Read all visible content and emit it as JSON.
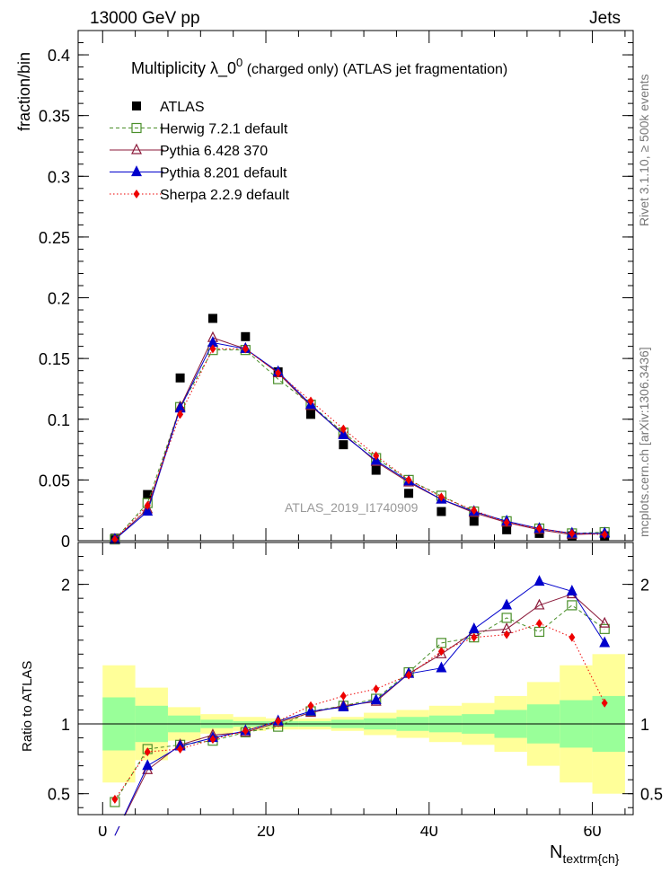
{
  "header": {
    "left": "13000 GeV pp",
    "right": "Jets"
  },
  "side_labels": {
    "rivet": "Rivet 3.1.10, ≥ 500k events",
    "mcplots": "mcplots.cern.ch [arXiv:1306.3436]"
  },
  "chart_data": {
    "type": "scatter",
    "title_main": "Multiplicity  λ_0",
    "title_sup": "0",
    "title_rest": " (charged only) (ATLAS jet fragmentation)",
    "ylabel": "fraction/bin",
    "ratio_ylabel": "Ratio to ATLAS",
    "xlabel_main": "N",
    "xlabel_sub": "textrm{ch}",
    "watermark": "ATLAS_2019_I1740909",
    "xlim": [
      -3,
      65
    ],
    "ylim": [
      0,
      0.42
    ],
    "ratio_ylim": [
      0.35,
      2.3
    ],
    "x_ticks": [
      "0",
      "20",
      "40",
      "60"
    ],
    "y_ticks": [
      "0",
      "0.05",
      "0.1",
      "0.15",
      "0.2",
      "0.25",
      "0.3",
      "0.35",
      "0.4"
    ],
    "ratio_ticks": [
      "0.5",
      "1",
      "2"
    ],
    "x": [
      1.5,
      5.5,
      9.5,
      13.5,
      17.5,
      21.5,
      25.5,
      29.5,
      33.5,
      37.5,
      41.5,
      45.5,
      49.5,
      53.5,
      57.5,
      61.5
    ],
    "bin_edges": [
      0,
      4,
      8,
      12,
      16,
      20,
      24,
      28,
      32,
      36,
      40,
      44,
      48,
      52,
      56,
      60,
      64
    ],
    "band_outer": [
      0.42,
      0.26,
      0.12,
      0.07,
      0.05,
      0.04,
      0.04,
      0.05,
      0.08,
      0.1,
      0.13,
      0.15,
      0.2,
      0.3,
      0.42,
      0.5
    ],
    "band_inner": [
      0.19,
      0.13,
      0.06,
      0.03,
      0.02,
      0.02,
      0.02,
      0.03,
      0.04,
      0.05,
      0.06,
      0.07,
      0.1,
      0.14,
      0.17,
      0.2
    ],
    "series": [
      {
        "name": "ATLAS",
        "color": "#000000",
        "marker": "filled-square",
        "values": [
          0.002,
          0.038,
          0.134,
          0.183,
          0.168,
          0.139,
          0.104,
          0.079,
          0.058,
          0.039,
          0.024,
          0.016,
          0.009,
          0.006,
          0.004,
          0.004
        ]
      },
      {
        "name": "Herwig 7.2.1 default",
        "color": "#4a8f2a",
        "marker": "open-square",
        "dash": "4,3",
        "values": [
          0.001,
          0.031,
          0.11,
          0.157,
          0.157,
          0.133,
          0.112,
          0.089,
          0.068,
          0.05,
          0.037,
          0.024,
          0.016,
          0.01,
          0.006,
          0.007
        ],
        "ratio": [
          0.44,
          0.82,
          0.85,
          0.88,
          0.94,
          0.98,
          1.09,
          1.13,
          1.18,
          1.37,
          1.58,
          1.62,
          1.76,
          1.66,
          1.85,
          1.68
        ]
      },
      {
        "name": "Pythia 6.428 370",
        "color": "#8b1a3a",
        "marker": "open-triangle",
        "values": [
          0.001,
          0.026,
          0.11,
          0.167,
          0.158,
          0.138,
          0.111,
          0.088,
          0.065,
          0.048,
          0.034,
          0.023,
          0.015,
          0.009,
          0.005,
          0.006
        ],
        "ratio": [
          0.2,
          0.67,
          0.85,
          0.92,
          0.94,
          1.01,
          1.08,
          1.13,
          1.16,
          1.36,
          1.5,
          1.66,
          1.68,
          1.85,
          1.93,
          1.72
        ]
      },
      {
        "name": "Pythia 8.201 default",
        "color": "#0000cc",
        "marker": "filled-triangle",
        "values": [
          0.001,
          0.024,
          0.109,
          0.163,
          0.158,
          0.139,
          0.112,
          0.087,
          0.066,
          0.049,
          0.034,
          0.024,
          0.016,
          0.01,
          0.006,
          0.006
        ],
        "ratio": [
          0.2,
          0.7,
          0.84,
          0.9,
          0.95,
          1.02,
          1.09,
          1.12,
          1.17,
          1.36,
          1.4,
          1.68,
          1.85,
          2.02,
          1.95,
          1.58
        ]
      },
      {
        "name": "Sherpa 2.2.9 default",
        "color": "#ee0000",
        "marker": "filled-diamond",
        "dash": "1.5,2.5",
        "values": [
          0.001,
          0.029,
          0.104,
          0.158,
          0.158,
          0.138,
          0.115,
          0.092,
          0.07,
          0.05,
          0.036,
          0.025,
          0.015,
          0.01,
          0.006,
          0.005
        ],
        "ratio": [
          0.46,
          0.8,
          0.82,
          0.89,
          0.95,
          1.02,
          1.13,
          1.2,
          1.25,
          1.35,
          1.52,
          1.62,
          1.64,
          1.72,
          1.62,
          1.15
        ]
      }
    ]
  }
}
